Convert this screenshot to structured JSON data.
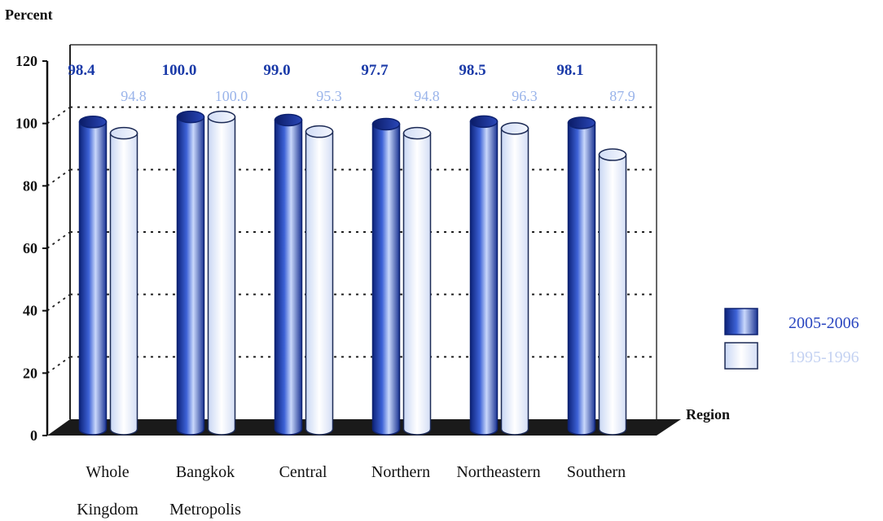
{
  "chart_data": {
    "type": "bar",
    "ylabel": "Percent",
    "xlabel": "Region",
    "ylim": [
      0,
      120
    ],
    "yticks": [
      0,
      20,
      40,
      60,
      80,
      100,
      120
    ],
    "grid": "dotted horizontal",
    "legend_position": "right",
    "categories": [
      [
        "Whole",
        "Kingdom"
      ],
      [
        "Bangkok",
        "Metropolis"
      ],
      [
        "Central"
      ],
      [
        "Northern"
      ],
      [
        "Northeastern"
      ],
      [
        "Southern"
      ]
    ],
    "series": [
      {
        "name": "2005-2006",
        "color": "#2f4fc4",
        "values": [
          98.4,
          100.0,
          99.0,
          97.7,
          98.5,
          98.1
        ],
        "labels": [
          "98.4",
          "100.0",
          "99.0",
          "97.7",
          "98.5",
          "98.1"
        ]
      },
      {
        "name": "1995-1996",
        "color": "#dfe9fb",
        "values": [
          94.8,
          100.0,
          95.3,
          94.8,
          96.3,
          87.9
        ],
        "labels": [
          "94.8",
          "100.0",
          "95.3",
          "94.8",
          "96.3",
          "87.9"
        ]
      }
    ]
  }
}
